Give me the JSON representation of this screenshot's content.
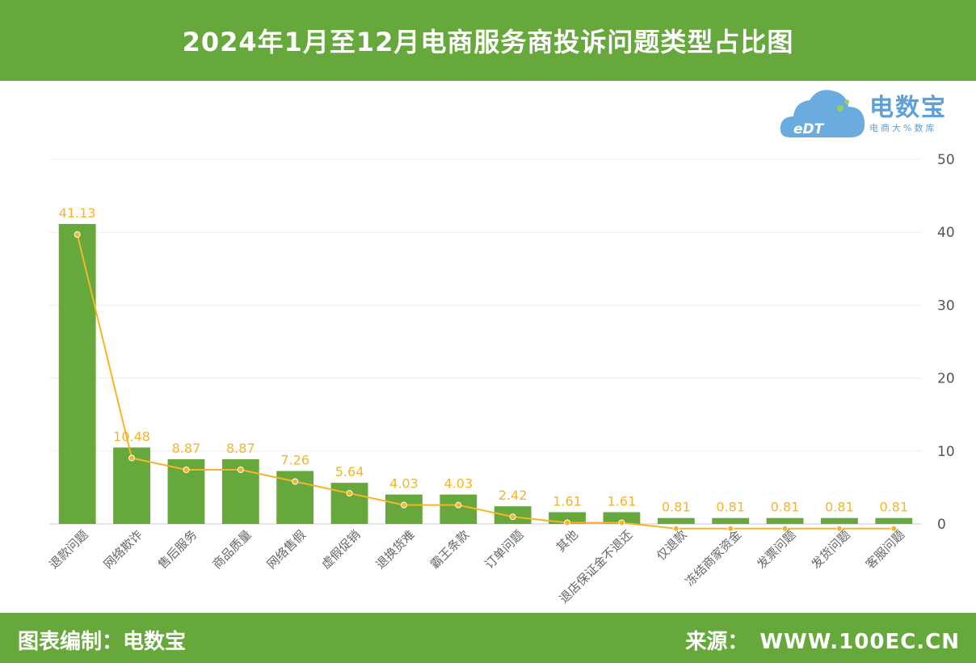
{
  "header": {
    "title": "2024年1月至12月电商服务商投诉问题类型占比图"
  },
  "logo": {
    "name": "电数宝",
    "subtitle": "电商大%数库",
    "mark": "eDT"
  },
  "footer": {
    "compiled_label": "图表编制：电数宝",
    "source_label": "来源：",
    "source_url": "WWW.100EC.CN"
  },
  "colors": {
    "bar": "#67a83c",
    "line": "#f5b42a",
    "label": "#f5b42a",
    "header_bg": "#67a83c"
  },
  "chart_data": {
    "type": "bar",
    "title": "2024年1月至12月电商服务商投诉问题类型占比图",
    "categories": [
      "退款问题",
      "网络欺诈",
      "售后服务",
      "商品质量",
      "网络售假",
      "虚假促销",
      "退换货难",
      "霸王条款",
      "订单问题",
      "其他",
      "退店保证金不退还",
      "仅退款",
      "冻结商家资金",
      "发票问题",
      "发货问题",
      "客服问题"
    ],
    "values": [
      41.13,
      10.48,
      8.87,
      8.87,
      7.26,
      5.64,
      4.03,
      4.03,
      2.42,
      1.61,
      1.61,
      0.81,
      0.81,
      0.81,
      0.81,
      0.81
    ],
    "data_labels": [
      "41.13",
      "10.48",
      "8.87",
      "8.87",
      "7.26",
      "5.64",
      "4.03",
      "4.03",
      "2.42",
      "1.61",
      "1.61",
      "0.81",
      "0.81",
      "0.81",
      "0.81",
      "0.81"
    ],
    "series": [
      {
        "type": "bar",
        "values": [
          41.13,
          10.48,
          8.87,
          8.87,
          7.26,
          5.64,
          4.03,
          4.03,
          2.42,
          1.61,
          1.61,
          0.81,
          0.81,
          0.81,
          0.81,
          0.81
        ]
      },
      {
        "type": "line",
        "values": [
          41.13,
          10.48,
          8.87,
          8.87,
          7.26,
          5.64,
          4.03,
          4.03,
          2.42,
          1.61,
          1.61,
          0.81,
          0.81,
          0.81,
          0.81,
          0.81
        ]
      }
    ],
    "yticks": [
      "0",
      "10",
      "20",
      "30",
      "40",
      "50"
    ],
    "ylim": [
      0,
      50
    ],
    "y_axis_side": "right",
    "grid": true,
    "xlabel": "",
    "ylabel": ""
  }
}
